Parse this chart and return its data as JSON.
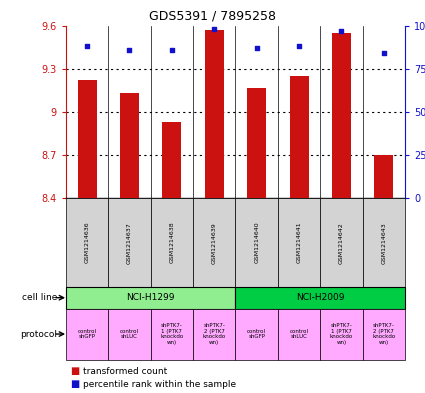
{
  "title": "GDS5391 / 7895258",
  "samples": [
    "GSM1214636",
    "GSM1214637",
    "GSM1214638",
    "GSM1214639",
    "GSM1214640",
    "GSM1214641",
    "GSM1214642",
    "GSM1214643"
  ],
  "bar_values": [
    9.22,
    9.13,
    8.93,
    9.57,
    9.17,
    9.25,
    9.55,
    8.7
  ],
  "bar_bottom": 8.4,
  "percentile_values": [
    88,
    86,
    86,
    98,
    87,
    88,
    97,
    84
  ],
  "bar_color": "#cc1111",
  "dot_color": "#1111cc",
  "ylim_left": [
    8.4,
    9.6
  ],
  "ylim_right": [
    0,
    100
  ],
  "yticks_left": [
    8.4,
    8.7,
    9.0,
    9.3,
    9.6
  ],
  "ytick_labels_left": [
    "8.4",
    "8.7",
    "9",
    "9.3",
    "9.6"
  ],
  "yticks_right": [
    0,
    25,
    50,
    75,
    100
  ],
  "ytick_labels_right": [
    "0",
    "25",
    "50",
    "75",
    "100%"
  ],
  "cell_line_groups": [
    {
      "label": "NCI-H1299",
      "start": 0,
      "end": 3,
      "color": "#90ee90"
    },
    {
      "label": "NCI-H2009",
      "start": 4,
      "end": 7,
      "color": "#00cc44"
    }
  ],
  "protocols": [
    {
      "label": "control\nshGFP",
      "color": "#ffaaff"
    },
    {
      "label": "control\nshLUC",
      "color": "#ffaaff"
    },
    {
      "label": "shPTK7-\n1 (PTK7\nknockdo\nwn)",
      "color": "#ffaaff"
    },
    {
      "label": "shPTK7-\n2 (PTK7\nknockdo\nwn)",
      "color": "#ffaaff"
    },
    {
      "label": "control\nshGFP",
      "color": "#ffaaff"
    },
    {
      "label": "control\nshLUC",
      "color": "#ffaaff"
    },
    {
      "label": "shPTK7-\n1 (PTK7\nknockdo\nwn)",
      "color": "#ffaaff"
    },
    {
      "label": "shPTK7-\n2 (PTK7\nknockdo\nwn)",
      "color": "#ffaaff"
    }
  ],
  "left_label_color": "#cc1111",
  "right_label_color": "#1111cc",
  "cell_line_label": "cell line",
  "protocol_label": "protocol",
  "legend_bar_label": "transformed count",
  "legend_dot_label": "percentile rank within the sample",
  "sample_box_color": "#d3d3d3",
  "title_fontsize": 9,
  "axis_fontsize": 7,
  "label_fontsize": 6.5,
  "sample_fontsize": 4.5,
  "protocol_fontsize": 4.0,
  "legend_fontsize": 6.5
}
